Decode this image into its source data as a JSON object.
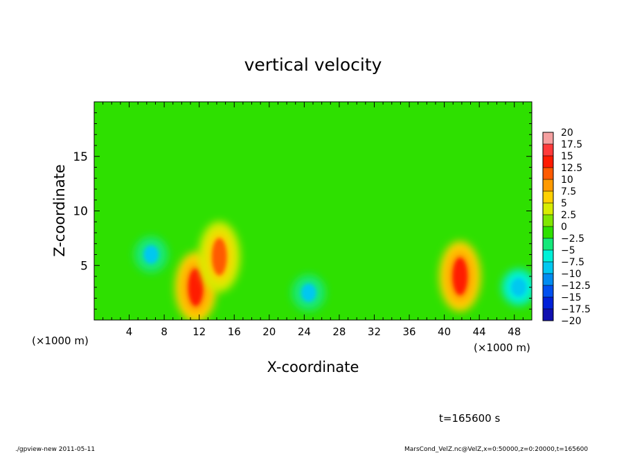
{
  "chart_data": {
    "type": "heatmap",
    "title": "vertical velocity",
    "xlabel": "X-coordinate",
    "ylabel": "Z-coordinate",
    "x_unit_label_left": "(×1000 m)",
    "x_unit_label_right": "(×1000 m)",
    "xlim": [
      0,
      50
    ],
    "ylim": [
      0,
      20
    ],
    "x_ticks": [
      4,
      8,
      12,
      16,
      20,
      24,
      28,
      32,
      36,
      40,
      44,
      48
    ],
    "x_tick_labels": [
      "4",
      "8",
      "12",
      "16",
      "20",
      "24",
      "28",
      "32",
      "36",
      "40",
      "44",
      "48"
    ],
    "y_ticks": [
      5,
      10,
      15
    ],
    "y_tick_labels": [
      "5",
      "10",
      "15"
    ],
    "colorbar": {
      "levels": [
        20,
        17.5,
        15,
        12.5,
        10,
        7.5,
        5,
        2.5,
        0,
        -2.5,
        -5,
        -7.5,
        -10,
        -12.5,
        -15,
        -17.5,
        -20
      ],
      "labels": [
        "20",
        "17.5",
        "15",
        "12.5",
        "10",
        "7.5",
        "5",
        "2.5",
        "0",
        "−2.5",
        "−5",
        "−7.5",
        "−10",
        "−12.5",
        "−15",
        "−17.5",
        "−20"
      ],
      "colors": [
        "#f5a0a0",
        "#ff3a3a",
        "#ff1a00",
        "#ff5a00",
        "#ff9a00",
        "#ffd000",
        "#d8ec00",
        "#80e600",
        "#2ee000",
        "#14e87a",
        "#00f0d8",
        "#00c8f0",
        "#008cf0",
        "#0050f0",
        "#0020d8",
        "#1010b0",
        "#6a00b4"
      ]
    },
    "field_features": [
      {
        "x": 11.6,
        "z": 3.0,
        "value": 14.5,
        "label": "updraft"
      },
      {
        "x": 14.3,
        "z": 5.8,
        "value": 11.5,
        "label": "updraft"
      },
      {
        "x": 41.8,
        "z": 4.0,
        "value": 14.0,
        "label": "updraft"
      },
      {
        "x": 6.5,
        "z": 6.0,
        "value": -7.0,
        "label": "downdraft"
      },
      {
        "x": 24.5,
        "z": 2.5,
        "value": -7.5,
        "label": "downdraft"
      },
      {
        "x": 48.5,
        "z": 3.0,
        "value": -8.5,
        "label": "downdraft"
      }
    ]
  },
  "annotations": {
    "time": "t=165600 s",
    "footer_left": "./gpview-new  2011-05-11",
    "footer_right": "MarsCond_VelZ.nc@VelZ,x=0:50000,z=0:20000,t=165600"
  }
}
